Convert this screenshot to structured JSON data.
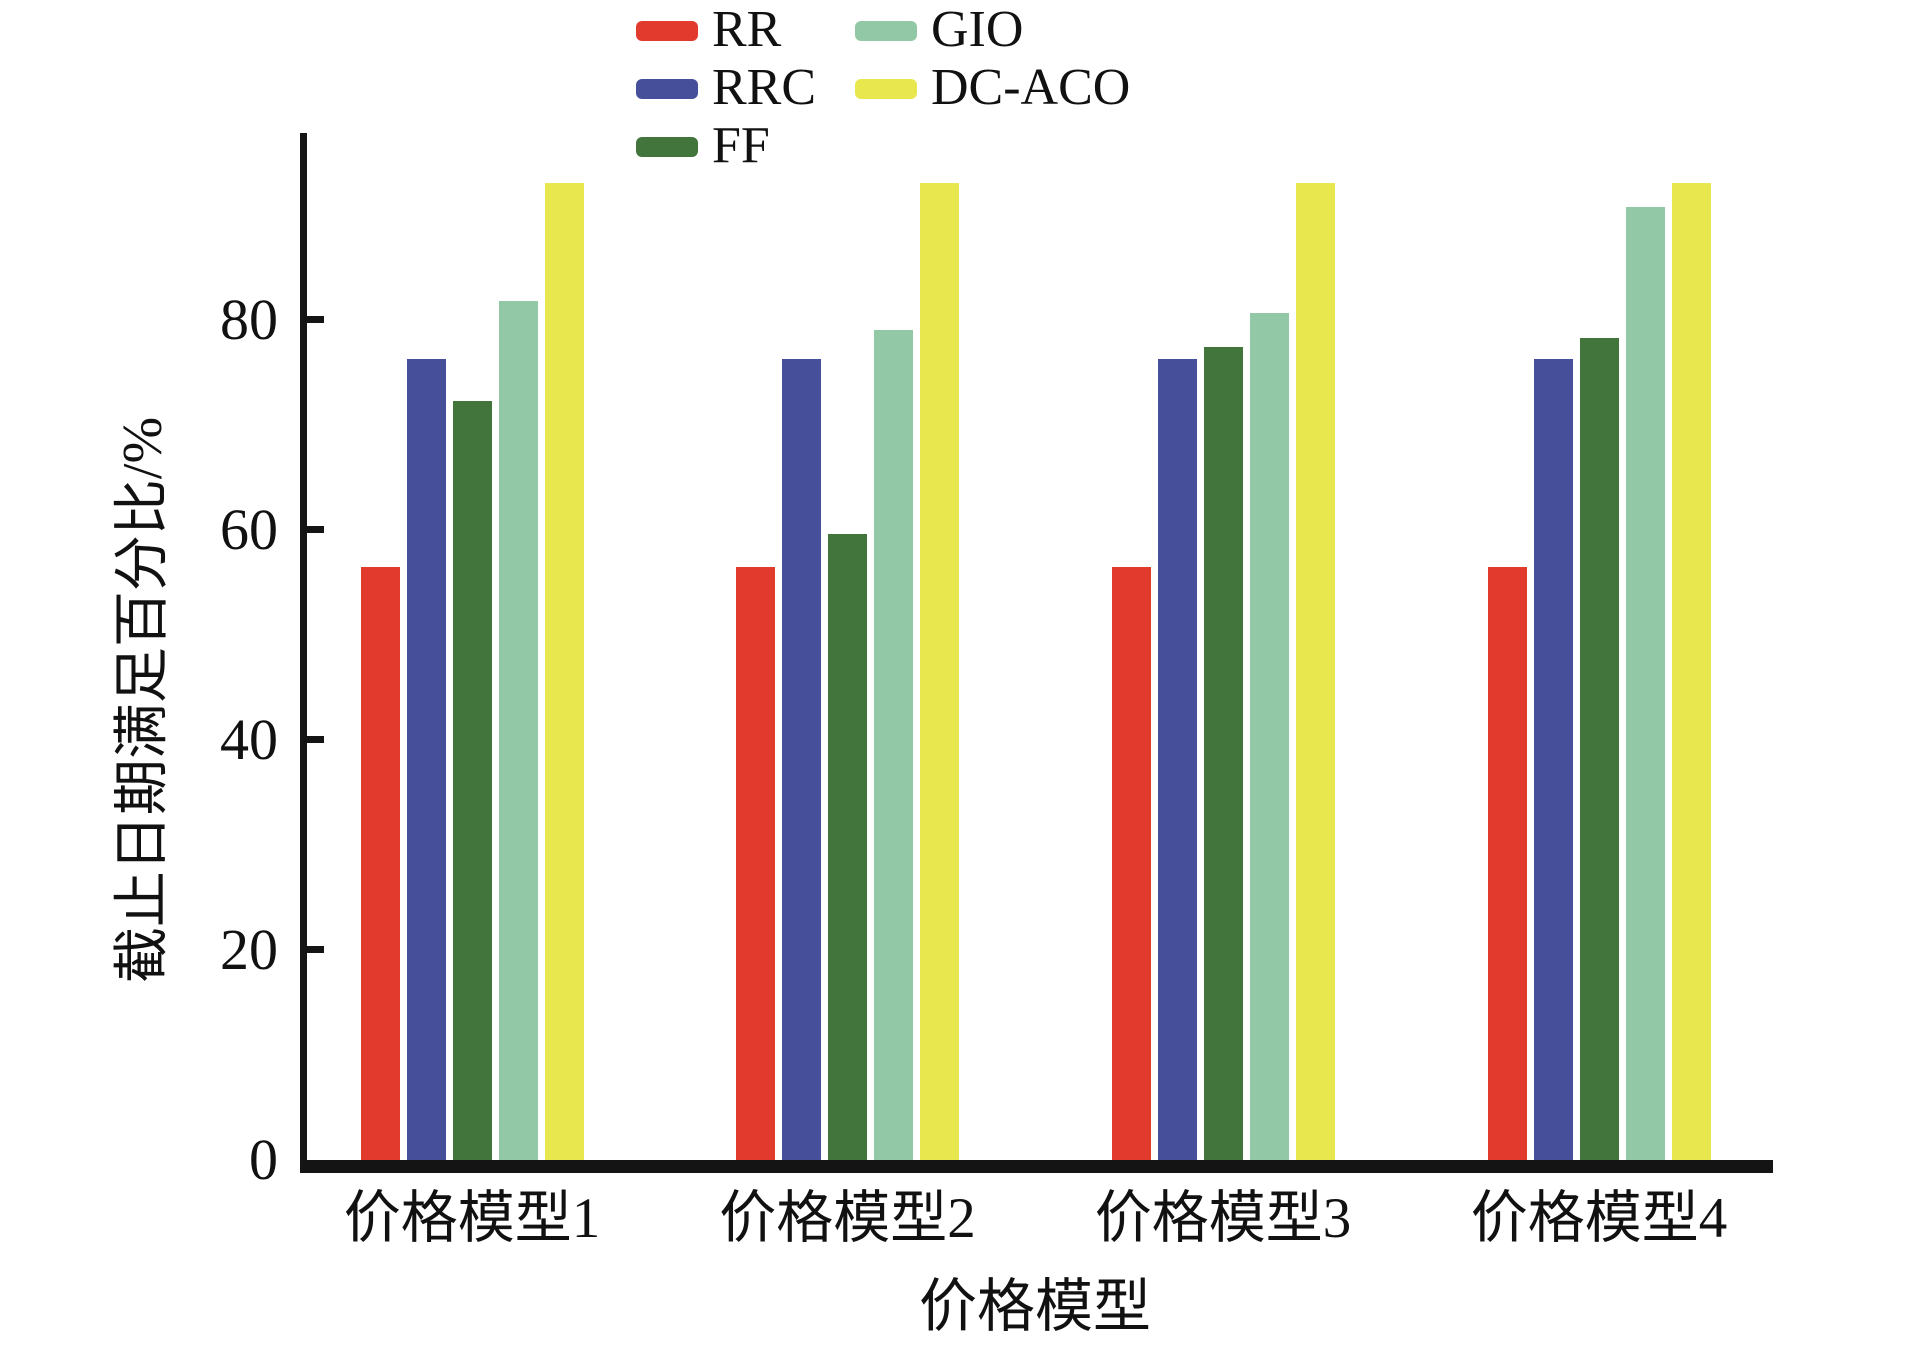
{
  "chart_data": {
    "type": "bar",
    "title": "",
    "xlabel": "价格模型",
    "ylabel": "截止日期满足百分比/%",
    "categories": [
      "价格模型1",
      "价格模型2",
      "价格模型3",
      "价格模型4"
    ],
    "series": [
      {
        "name": "RR",
        "color": "#e23b2e",
        "values": [
          56.5,
          56.5,
          56.5,
          56.5
        ]
      },
      {
        "name": "RRC",
        "color": "#46509a",
        "values": [
          76.3,
          76.3,
          76.3,
          76.3
        ]
      },
      {
        "name": "FF",
        "color": "#41753b",
        "values": [
          72.3,
          59.6,
          77.4,
          78.3
        ]
      },
      {
        "name": "GIO",
        "color": "#92c8a6",
        "values": [
          81.8,
          79.0,
          80.7,
          90.8
        ]
      },
      {
        "name": "DC-ACO",
        "color": "#e9e74e",
        "values": [
          93.0,
          93.0,
          93.0,
          93.0
        ]
      }
    ],
    "ylim": [
      0,
      97.8
    ],
    "yticks": [
      0,
      20,
      40,
      60,
      80
    ],
    "grid": false,
    "legend_position": "top",
    "legend_columns": [
      [
        "RR",
        "RRC",
        "FF"
      ],
      [
        "GIO",
        "DC-ACO"
      ]
    ],
    "axis_color": "#141414"
  }
}
